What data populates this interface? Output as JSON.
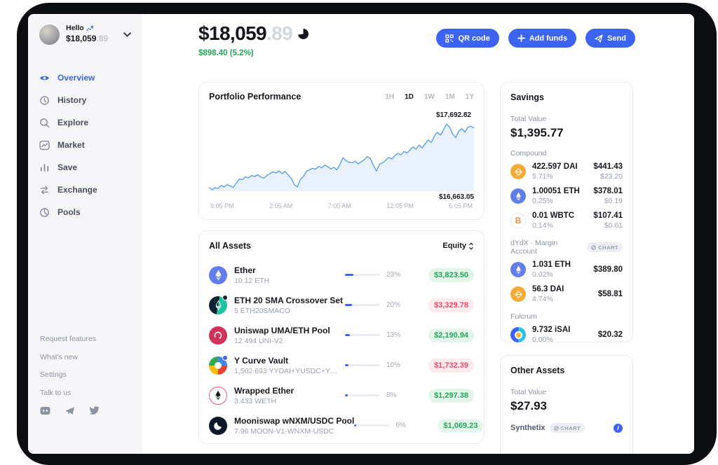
{
  "sidebar": {
    "greeting": "Hello",
    "balance_main": "$18,059",
    "balance_cents": ".89",
    "items": [
      {
        "label": "Overview",
        "icon": "eye-icon",
        "active": true
      },
      {
        "label": "History",
        "icon": "history-icon",
        "active": false
      },
      {
        "label": "Explore",
        "icon": "search-icon",
        "active": false
      },
      {
        "label": "Market",
        "icon": "market-chart-icon",
        "active": false
      },
      {
        "label": "Save",
        "icon": "bars-icon",
        "active": false
      },
      {
        "label": "Exchange",
        "icon": "exchange-arrows-icon",
        "active": false
      },
      {
        "label": "Pools",
        "icon": "pools-icon",
        "active": false
      }
    ],
    "footer_links": [
      "Request features",
      "What's new",
      "Settings",
      "Talk to us"
    ],
    "social_icons": [
      "discord-icon",
      "telegram-icon",
      "twitter-icon"
    ]
  },
  "header": {
    "balance_main": "$18,059",
    "balance_cents": ".89",
    "change": "$898.40 (5.2%)",
    "buttons": [
      {
        "label": "QR code",
        "icon": "qr-icon"
      },
      {
        "label": "Add funds",
        "icon": "plus-icon"
      },
      {
        "label": "Send",
        "icon": "send-plane-icon"
      }
    ]
  },
  "chart_data": {
    "type": "line",
    "title": "Portfolio Performance",
    "ranges": [
      "1H",
      "1D",
      "1W",
      "1M",
      "1Y"
    ],
    "active_range": "1D",
    "high_label": "$17,692.82",
    "low_label": "$16,663.05",
    "x_ticks": [
      "9:05 PM",
      "2:05 AM",
      "7:05 AM",
      "12:05 PM",
      "5:05 PM"
    ],
    "ylim": [
      16640,
      17740
    ],
    "line_color": "#5b9ff0",
    "area_color": "#e9f2fc",
    "values": [
      16700,
      16663,
      16695,
      16685,
      16730,
      16705,
      16745,
      16720,
      16700,
      16770,
      16830,
      16820,
      16865,
      16850,
      16885,
      16870,
      16900,
      16865,
      16845,
      16885,
      16915,
      16945,
      16925,
      16960,
      16915,
      16950,
      16895,
      16845,
      16745,
      16705,
      16825,
      16870,
      16950,
      16975,
      17000,
      16985,
      17030,
      17005,
      17050,
      17025,
      16990,
      17015,
      16975,
      17060,
      17165,
      17120,
      17095,
      17085,
      17110,
      17070,
      17100,
      17135,
      17185,
      17150,
      17045,
      16955,
      17065,
      17085,
      17125,
      17170,
      17145,
      17195,
      17235,
      17210,
      17265,
      17240,
      17285,
      17335,
      17300,
      17365,
      17320,
      17385,
      17445,
      17405,
      17505,
      17565,
      17520,
      17605,
      17693,
      17645,
      17540,
      17480,
      17585,
      17625,
      17565,
      17645,
      17660,
      17635
    ]
  },
  "assets": {
    "title": "All Assets",
    "sort_label": "Equity",
    "rows": [
      {
        "name": "Ether",
        "sub": "10.12 ETH",
        "pct": 23,
        "pct_label": "23%",
        "equity": "$3,823.50",
        "positive": true,
        "icon": "eth-icon"
      },
      {
        "name": "ETH 20 SMA Crossover Set",
        "sub": "5 ETH20SMACO",
        "pct": 20,
        "pct_label": "20%",
        "equity": "$3,329.78",
        "positive": false,
        "icon": "eth20sma-icon"
      },
      {
        "name": "Uniswap UMA/ETH Pool",
        "sub": "12.494 UNI-V2",
        "pct": 13,
        "pct_label": "13%",
        "equity": "$2,190.94",
        "positive": true,
        "icon": "uniswap-pool-icon"
      },
      {
        "name": "Y Curve Vault",
        "sub": "1,502.693 YYDAI+YUSDC+YUSDT+Y...",
        "pct": 10,
        "pct_label": "10%",
        "equity": "$1,732.39",
        "positive": false,
        "icon": "ycurve-icon"
      },
      {
        "name": "Wrapped Ether",
        "sub": "3.433 WETH",
        "pct": 8,
        "pct_label": "8%",
        "equity": "$1,297.38",
        "positive": true,
        "icon": "weth-icon"
      },
      {
        "name": "Mooniswap wNXM/USDC Pool",
        "sub": "7.96 MOON-V1-WNXM-USDC",
        "pct": 6,
        "pct_label": "6%",
        "equity": "$1,069.23",
        "positive": true,
        "icon": "mooniswap-icon"
      }
    ]
  },
  "savings": {
    "title": "Savings",
    "total_label": "Total Value",
    "total": "$1,395.77",
    "sections": [
      {
        "label": "Compound",
        "badge": "",
        "rows": [
          {
            "amount": "422.597 DAI",
            "apy": "5.71%",
            "value": "$441.43",
            "sub_value": "$23.20",
            "icon": "dai-icon"
          },
          {
            "amount": "1.00051 ETH",
            "apy": "0.25%",
            "value": "$378.01",
            "sub_value": "$0.19",
            "icon": "eth-icon"
          },
          {
            "amount": "0.01 WBTC",
            "apy": "0.14%",
            "value": "$107.41",
            "sub_value": "$0.61",
            "icon": "wbtc-icon"
          }
        ]
      },
      {
        "label": "dYdX · Margin Account",
        "badge": "CHART",
        "rows": [
          {
            "amount": "1.031 ETH",
            "apy": "0.02%",
            "value": "$389.80",
            "sub_value": "",
            "icon": "eth-icon"
          },
          {
            "amount": "56.3 DAI",
            "apy": "4.74%",
            "value": "$58.81",
            "sub_value": "",
            "icon": "dai-icon"
          }
        ]
      },
      {
        "label": "Fulcrum",
        "badge": "",
        "rows": [
          {
            "amount": "9.732 iSAI",
            "apy": "0.00%",
            "value": "$20.32",
            "sub_value": "",
            "icon": "isai-icon"
          }
        ]
      }
    ]
  },
  "other_assets": {
    "title": "Other Assets",
    "total_label": "Total Value",
    "total": "$27.93",
    "row_label": "Synthetix",
    "badge": "CHART"
  }
}
